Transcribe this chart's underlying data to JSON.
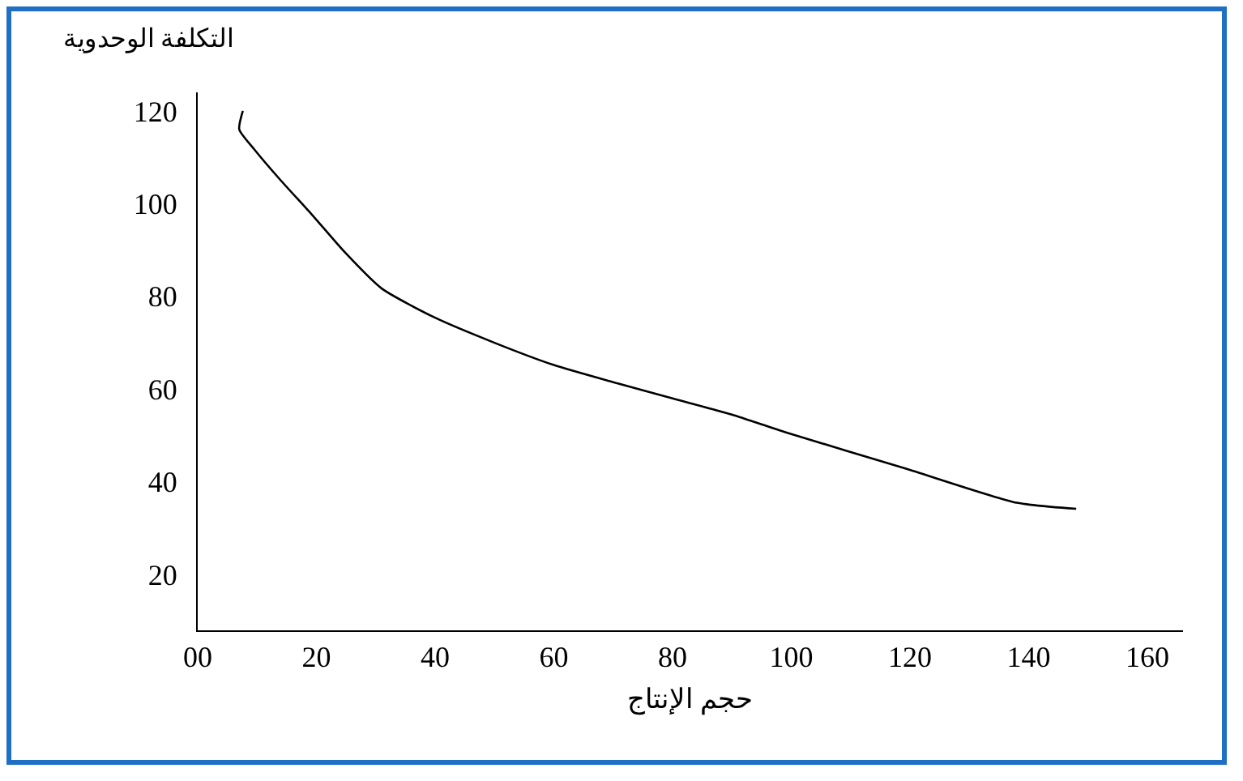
{
  "chart_data": {
    "type": "line",
    "xlabel": "حجم الإنتاج",
    "ylabel": "التكلفة الوحدوية",
    "x": [
      7.6,
      7,
      9.6,
      14,
      19.2,
      24.8,
      31,
      40,
      50,
      60,
      70,
      80,
      90,
      99,
      119,
      138,
      148
    ],
    "values": [
      120,
      116,
      111.6,
      105,
      97.7,
      89.5,
      81.7,
      75.4,
      70,
      65.2,
      61.5,
      58,
      54.5,
      50.7,
      43,
      35.5,
      34.2
    ],
    "color": "#000000",
    "marker": "none",
    "line_style": "solid",
    "grid": false,
    "legend": false,
    "xlim": [
      0,
      166
    ],
    "xticks": [
      {
        "value": 0,
        "label": "00"
      },
      20,
      40,
      60,
      80,
      100,
      120,
      140,
      160
    ],
    "ylim": [
      8,
      124
    ],
    "yticks": [
      20,
      40,
      60,
      80,
      100,
      120
    ]
  }
}
